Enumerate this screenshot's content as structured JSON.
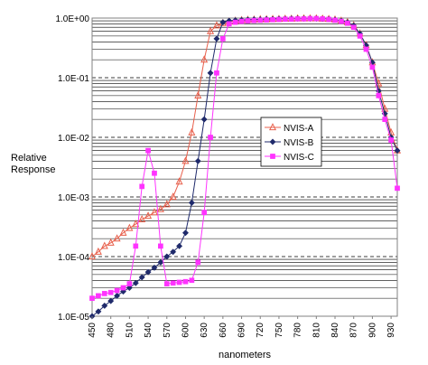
{
  "chart_data": {
    "type": "line",
    "ylabel": "Relative\nResponse",
    "xlabel": "nanometers",
    "yscale": "log",
    "ylim": [
      1e-05,
      1
    ],
    "xlim": [
      450,
      940
    ],
    "grid": true,
    "legend_placement": "center-right",
    "y_tick_labels": [
      "1.0E+00",
      "1.0E-01",
      "1.0E-02",
      "1.0E-03",
      "1.0E-04",
      "1.0E-05"
    ],
    "x_tick_labels": [
      "450",
      "480",
      "510",
      "540",
      "570",
      "600",
      "630",
      "660",
      "690",
      "720",
      "750",
      "780",
      "810",
      "840",
      "870",
      "900",
      "930"
    ],
    "series": [
      {
        "name": "NVIS-A",
        "color": "#e8604c",
        "marker": "triangle",
        "x": [
          450,
          460,
          470,
          480,
          490,
          500,
          510,
          520,
          530,
          540,
          550,
          560,
          570,
          580,
          590,
          600,
          610,
          620,
          630,
          640,
          650,
          660,
          670,
          680,
          690,
          700,
          710,
          720,
          730,
          740,
          750,
          760,
          770,
          780,
          790,
          800,
          810,
          820,
          830,
          840,
          850,
          860,
          870,
          880,
          890,
          900,
          910,
          920,
          930,
          940
        ],
        "y": [
          0.0001,
          0.00012,
          0.00015,
          0.00017,
          0.0002,
          0.00025,
          0.0003,
          0.00035,
          0.00042,
          0.00048,
          0.00055,
          0.00062,
          0.00075,
          0.001,
          0.0018,
          0.004,
          0.012,
          0.05,
          0.2,
          0.6,
          0.75,
          0.82,
          0.87,
          0.9,
          0.92,
          0.93,
          0.94,
          0.95,
          0.95,
          0.96,
          0.96,
          0.97,
          0.97,
          0.98,
          0.98,
          0.98,
          0.98,
          0.97,
          0.96,
          0.94,
          0.9,
          0.85,
          0.75,
          0.55,
          0.35,
          0.18,
          0.08,
          0.03,
          0.012,
          0.006
        ]
      },
      {
        "name": "NVIS-B",
        "color": "#1f2a6b",
        "marker": "diamond",
        "x": [
          450,
          460,
          470,
          480,
          490,
          500,
          510,
          520,
          530,
          540,
          550,
          560,
          570,
          580,
          590,
          600,
          610,
          620,
          630,
          640,
          650,
          660,
          670,
          680,
          690,
          700,
          710,
          720,
          730,
          740,
          750,
          760,
          770,
          780,
          790,
          800,
          810,
          820,
          830,
          840,
          850,
          860,
          870,
          880,
          890,
          900,
          910,
          920,
          930,
          940
        ],
        "y": [
          1e-05,
          1.2e-05,
          1.5e-05,
          1.8e-05,
          2.2e-05,
          2.6e-05,
          3e-05,
          3.6e-05,
          4.5e-05,
          5.5e-05,
          6.5e-05,
          8e-05,
          0.0001,
          0.00012,
          0.00015,
          0.00025,
          0.0008,
          0.004,
          0.02,
          0.12,
          0.45,
          0.85,
          0.9,
          0.92,
          0.93,
          0.94,
          0.95,
          0.95,
          0.96,
          0.96,
          0.97,
          0.97,
          0.98,
          0.98,
          0.98,
          0.98,
          0.98,
          0.97,
          0.96,
          0.94,
          0.9,
          0.85,
          0.75,
          0.55,
          0.35,
          0.18,
          0.06,
          0.025,
          0.01,
          0.006
        ]
      },
      {
        "name": "NVIS-C",
        "color": "#ff33ff",
        "marker": "square",
        "x": [
          450,
          460,
          470,
          480,
          490,
          500,
          510,
          520,
          530,
          540,
          550,
          560,
          570,
          580,
          590,
          600,
          610,
          620,
          630,
          640,
          650,
          660,
          670,
          680,
          690,
          700,
          710,
          720,
          730,
          740,
          750,
          760,
          770,
          780,
          790,
          800,
          810,
          820,
          830,
          840,
          850,
          860,
          870,
          880,
          890,
          900,
          910,
          920,
          930,
          940
        ],
        "y": [
          2e-05,
          2.2e-05,
          2.4e-05,
          2.5e-05,
          2.7e-05,
          3e-05,
          3.5e-05,
          0.00015,
          0.0015,
          0.006,
          0.0025,
          0.00015,
          3.5e-05,
          3.6e-05,
          3.7e-05,
          3.8e-05,
          4e-05,
          8e-05,
          0.00055,
          0.01,
          0.12,
          0.45,
          0.8,
          0.85,
          0.88,
          0.9,
          0.91,
          0.92,
          0.93,
          0.94,
          0.95,
          0.96,
          0.96,
          0.97,
          0.97,
          0.98,
          0.98,
          0.97,
          0.95,
          0.92,
          0.88,
          0.82,
          0.7,
          0.5,
          0.3,
          0.15,
          0.05,
          0.02,
          0.009,
          0.0014
        ]
      }
    ]
  }
}
